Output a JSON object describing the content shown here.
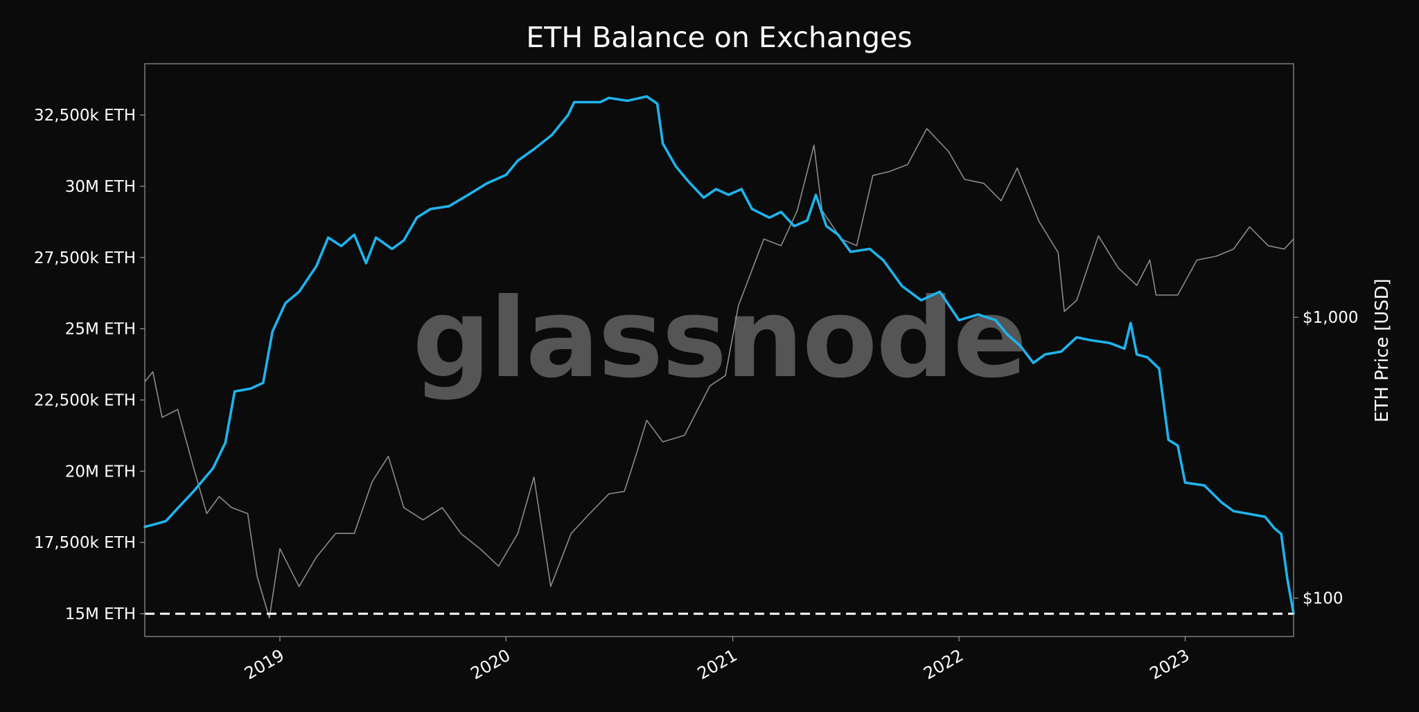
{
  "chart_data": {
    "type": "line",
    "title": "ETH Balance on Exchanges",
    "ylabel": "",
    "y2label": "ETH Price [USD]",
    "watermark": "glassnode",
    "xlim": [
      "2018-05-28",
      "2023-06-25"
    ],
    "ylim": [
      14200000,
      34300000
    ],
    "y2lim": [
      73,
      8000
    ],
    "y2scale": "log",
    "x_ticks": [
      "2019",
      "2020",
      "2021",
      "2022",
      "2023"
    ],
    "y_ticks": [
      {
        "value": 15000000,
        "label": "15M ETH"
      },
      {
        "value": 17500000,
        "label": "17,500k ETH"
      },
      {
        "value": 20000000,
        "label": "20M ETH"
      },
      {
        "value": 22500000,
        "label": "22,500k ETH"
      },
      {
        "value": 25000000,
        "label": "25M ETH"
      },
      {
        "value": 27500000,
        "label": "27,500k ETH"
      },
      {
        "value": 30000000,
        "label": "30M ETH"
      },
      {
        "value": 32500000,
        "label": "32,500k ETH"
      }
    ],
    "y2_ticks": [
      {
        "value": 1000,
        "label": "$1,000"
      },
      {
        "value": 100,
        "label": "$100"
      }
    ],
    "reference_line": {
      "value": 15000000,
      "style": "dashed",
      "color": "#ffffff"
    },
    "colors": {
      "background": "#0b0b0b",
      "balance": "#1eb4ee",
      "price": "#8c8c8c",
      "text": "#ffffff",
      "frame": "#9a9a9a",
      "watermark": "#555555"
    },
    "series": [
      {
        "axis": "left",
        "points": [
          [
            "2018-05-28",
            18050000
          ],
          [
            "2018-06-15",
            18150000
          ],
          [
            "2018-07-01",
            18250000
          ],
          [
            "2018-07-20",
            18700000
          ],
          [
            "2018-08-15",
            19300000
          ],
          [
            "2018-09-15",
            20100000
          ],
          [
            "2018-10-05",
            21000000
          ],
          [
            "2018-10-20",
            22800000
          ],
          [
            "2018-11-15",
            22900000
          ],
          [
            "2018-12-05",
            23100000
          ],
          [
            "2018-12-20",
            24900000
          ],
          [
            "2019-01-10",
            25900000
          ],
          [
            "2019-02-01",
            26300000
          ],
          [
            "2019-03-01",
            27200000
          ],
          [
            "2019-03-20",
            28200000
          ],
          [
            "2019-04-10",
            27900000
          ],
          [
            "2019-05-01",
            28300000
          ],
          [
            "2019-05-20",
            27300000
          ],
          [
            "2019-06-05",
            28200000
          ],
          [
            "2019-07-01",
            27800000
          ],
          [
            "2019-07-20",
            28100000
          ],
          [
            "2019-08-10",
            28900000
          ],
          [
            "2019-09-01",
            29200000
          ],
          [
            "2019-10-01",
            29300000
          ],
          [
            "2019-11-01",
            29700000
          ],
          [
            "2019-12-01",
            30100000
          ],
          [
            "2020-01-01",
            30400000
          ],
          [
            "2020-01-20",
            30900000
          ],
          [
            "2020-02-15",
            31300000
          ],
          [
            "2020-03-15",
            31800000
          ],
          [
            "2020-04-10",
            32500000
          ],
          [
            "2020-04-20",
            32950000
          ],
          [
            "2020-06-01",
            32950000
          ],
          [
            "2020-06-15",
            33100000
          ],
          [
            "2020-07-15",
            33000000
          ],
          [
            "2020-08-15",
            33150000
          ],
          [
            "2020-09-01",
            32900000
          ],
          [
            "2020-09-10",
            31500000
          ],
          [
            "2020-10-01",
            30700000
          ],
          [
            "2020-10-20",
            30200000
          ],
          [
            "2020-11-15",
            29600000
          ],
          [
            "2020-12-05",
            29900000
          ],
          [
            "2020-12-25",
            29700000
          ],
          [
            "2021-01-15",
            29900000
          ],
          [
            "2021-02-01",
            29200000
          ],
          [
            "2021-03-01",
            28900000
          ],
          [
            "2021-03-20",
            29100000
          ],
          [
            "2021-04-10",
            28600000
          ],
          [
            "2021-05-01",
            28800000
          ],
          [
            "2021-05-15",
            29700000
          ],
          [
            "2021-06-01",
            28600000
          ],
          [
            "2021-06-20",
            28300000
          ],
          [
            "2021-07-10",
            27700000
          ],
          [
            "2021-08-10",
            27800000
          ],
          [
            "2021-09-01",
            27400000
          ],
          [
            "2021-10-01",
            26500000
          ],
          [
            "2021-11-01",
            26000000
          ],
          [
            "2021-12-01",
            26300000
          ],
          [
            "2022-01-01",
            25300000
          ],
          [
            "2022-02-01",
            25500000
          ],
          [
            "2022-03-01",
            25300000
          ],
          [
            "2022-03-20",
            24800000
          ],
          [
            "2022-04-10",
            24400000
          ],
          [
            "2022-05-01",
            23800000
          ],
          [
            "2022-05-20",
            24100000
          ],
          [
            "2022-06-15",
            24200000
          ],
          [
            "2022-07-10",
            24700000
          ],
          [
            "2022-08-01",
            24600000
          ],
          [
            "2022-09-01",
            24500000
          ],
          [
            "2022-09-25",
            24300000
          ],
          [
            "2022-10-05",
            25200000
          ],
          [
            "2022-10-15",
            24100000
          ],
          [
            "2022-11-01",
            24000000
          ],
          [
            "2022-11-20",
            23600000
          ],
          [
            "2022-12-05",
            21100000
          ],
          [
            "2022-12-20",
            20900000
          ],
          [
            "2023-01-01",
            19600000
          ],
          [
            "2023-02-01",
            19500000
          ],
          [
            "2023-03-01",
            18900000
          ],
          [
            "2023-03-20",
            18600000
          ],
          [
            "2023-04-15",
            18500000
          ],
          [
            "2023-05-10",
            18400000
          ],
          [
            "2023-05-25",
            18000000
          ],
          [
            "2023-06-05",
            17800000
          ],
          [
            "2023-06-15",
            16200000
          ],
          [
            "2023-06-25",
            15000000
          ]
        ]
      },
      {
        "axis": "right",
        "points": [
          [
            "2018-05-28",
            590
          ],
          [
            "2018-06-10",
            640
          ],
          [
            "2018-06-25",
            440
          ],
          [
            "2018-07-20",
            470
          ],
          [
            "2018-08-15",
            290
          ],
          [
            "2018-09-05",
            200
          ],
          [
            "2018-09-25",
            230
          ],
          [
            "2018-10-15",
            210
          ],
          [
            "2018-11-10",
            200
          ],
          [
            "2018-11-25",
            120
          ],
          [
            "2018-12-15",
            85
          ],
          [
            "2019-01-01",
            150
          ],
          [
            "2019-02-01",
            110
          ],
          [
            "2019-03-01",
            140
          ],
          [
            "2019-04-01",
            170
          ],
          [
            "2019-05-01",
            170
          ],
          [
            "2019-05-30",
            260
          ],
          [
            "2019-06-25",
            320
          ],
          [
            "2019-07-20",
            210
          ],
          [
            "2019-08-20",
            190
          ],
          [
            "2019-09-20",
            210
          ],
          [
            "2019-10-20",
            170
          ],
          [
            "2019-11-20",
            150
          ],
          [
            "2019-12-20",
            130
          ],
          [
            "2020-01-20",
            170
          ],
          [
            "2020-02-15",
            270
          ],
          [
            "2020-03-13",
            110
          ],
          [
            "2020-04-15",
            170
          ],
          [
            "2020-05-15",
            200
          ],
          [
            "2020-06-15",
            235
          ],
          [
            "2020-07-10",
            240
          ],
          [
            "2020-07-30",
            330
          ],
          [
            "2020-08-15",
            430
          ],
          [
            "2020-09-10",
            360
          ],
          [
            "2020-10-15",
            380
          ],
          [
            "2020-11-25",
            570
          ],
          [
            "2020-12-20",
            620
          ],
          [
            "2021-01-10",
            1100
          ],
          [
            "2021-02-20",
            1900
          ],
          [
            "2021-03-20",
            1800
          ],
          [
            "2021-04-15",
            2400
          ],
          [
            "2021-05-12",
            4100
          ],
          [
            "2021-05-25",
            2400
          ],
          [
            "2021-06-25",
            1900
          ],
          [
            "2021-07-20",
            1800
          ],
          [
            "2021-08-15",
            3200
          ],
          [
            "2021-09-10",
            3300
          ],
          [
            "2021-10-10",
            3500
          ],
          [
            "2021-11-10",
            4700
          ],
          [
            "2021-12-15",
            3900
          ],
          [
            "2022-01-10",
            3100
          ],
          [
            "2022-02-10",
            3000
          ],
          [
            "2022-03-10",
            2600
          ],
          [
            "2022-04-05",
            3400
          ],
          [
            "2022-05-10",
            2200
          ],
          [
            "2022-06-10",
            1700
          ],
          [
            "2022-06-20",
            1050
          ],
          [
            "2022-07-10",
            1150
          ],
          [
            "2022-08-14",
            1950
          ],
          [
            "2022-09-15",
            1500
          ],
          [
            "2022-10-15",
            1300
          ],
          [
            "2022-11-05",
            1600
          ],
          [
            "2022-11-15",
            1200
          ],
          [
            "2022-12-20",
            1200
          ],
          [
            "2023-01-20",
            1600
          ],
          [
            "2023-02-20",
            1650
          ],
          [
            "2023-03-20",
            1750
          ],
          [
            "2023-04-15",
            2100
          ],
          [
            "2023-05-15",
            1800
          ],
          [
            "2023-06-10",
            1750
          ],
          [
            "2023-06-25",
            1900
          ]
        ]
      }
    ]
  }
}
